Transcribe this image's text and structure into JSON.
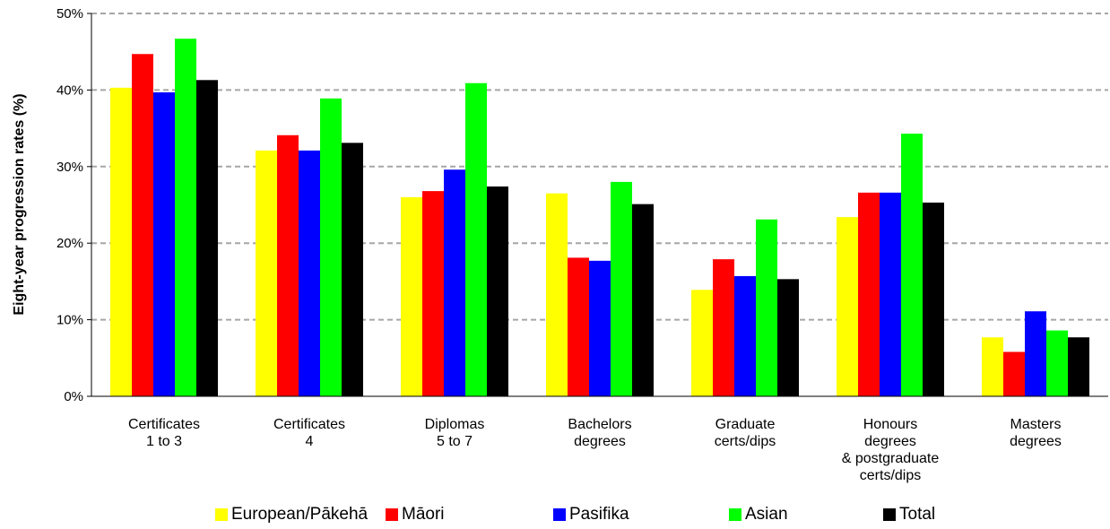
{
  "chart_data": {
    "type": "bar",
    "ylabel": "Eight-year progression rates (%)",
    "xlabel": "",
    "ylim": [
      0,
      50
    ],
    "ytick_labels": [
      "0%",
      "10%",
      "20%",
      "30%",
      "40%",
      "50%"
    ],
    "grid": true,
    "legend_position": "bottom",
    "categories": [
      [
        "Certificates",
        "1 to 3"
      ],
      [
        "Certificates",
        "4"
      ],
      [
        "Diplomas",
        "5 to 7"
      ],
      [
        "Bachelors",
        "degrees"
      ],
      [
        "Graduate",
        "certs/dips"
      ],
      [
        "Honours",
        "degrees",
        "& postgraduate",
        "certs/dips"
      ],
      [
        "Masters",
        "degrees"
      ]
    ],
    "series": [
      {
        "name": "European/Pākehā",
        "color": "#ffff00",
        "values": [
          40.3,
          32.1,
          26.0,
          26.5,
          13.9,
          23.4,
          7.7
        ]
      },
      {
        "name": "Māori",
        "color": "#ff0000",
        "values": [
          44.7,
          34.1,
          26.8,
          18.1,
          17.9,
          26.6,
          5.8
        ]
      },
      {
        "name": "Pasifika",
        "color": "#0000ff",
        "values": [
          39.7,
          32.1,
          29.6,
          17.7,
          15.7,
          26.6,
          11.1
        ]
      },
      {
        "name": "Asian",
        "color": "#00ff00",
        "values": [
          46.7,
          38.9,
          40.9,
          28.0,
          23.1,
          34.3,
          8.6
        ]
      },
      {
        "name": "Total",
        "color": "#000000",
        "values": [
          41.3,
          33.1,
          27.4,
          25.1,
          15.3,
          25.3,
          7.7
        ]
      }
    ]
  }
}
